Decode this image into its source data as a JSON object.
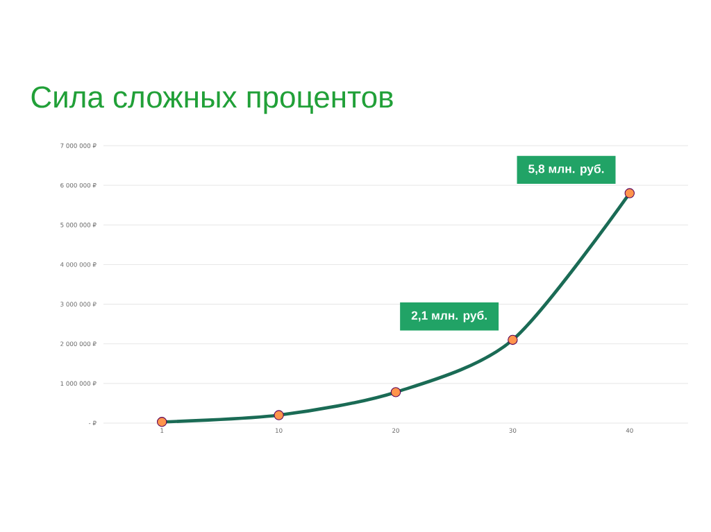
{
  "chart_data": {
    "type": "line",
    "title": "Сила сложных процентов",
    "categories": [
      "1",
      "10",
      "20",
      "30",
      "40"
    ],
    "series": [
      {
        "color": "#1a6b55",
        "values": [
          30000,
          200000,
          780000,
          2100000,
          5800000
        ]
      }
    ],
    "ylim": [
      0,
      7000000
    ],
    "yticks": [
      {
        "value": 0,
        "label": "-  ₽"
      },
      {
        "value": 1000000,
        "label": "1 000 000 ₽"
      },
      {
        "value": 2000000,
        "label": "2 000 000 ₽"
      },
      {
        "value": 3000000,
        "label": "3 000 000 ₽"
      },
      {
        "value": 4000000,
        "label": "4 000 000 ₽"
      },
      {
        "value": 5000000,
        "label": "5 000 000 ₽"
      },
      {
        "value": 6000000,
        "label": "6 000 000 ₽"
      },
      {
        "value": 7000000,
        "label": "7 000 000 ₽"
      }
    ],
    "annotations": [
      {
        "text": "5,8 млн. руб.",
        "x": "40",
        "y": 5800000
      },
      {
        "text": "2,1 млн. руб.",
        "x": "30",
        "y": 2100000
      }
    ],
    "grid": "y",
    "marker": "circle",
    "line_style": "solid"
  }
}
